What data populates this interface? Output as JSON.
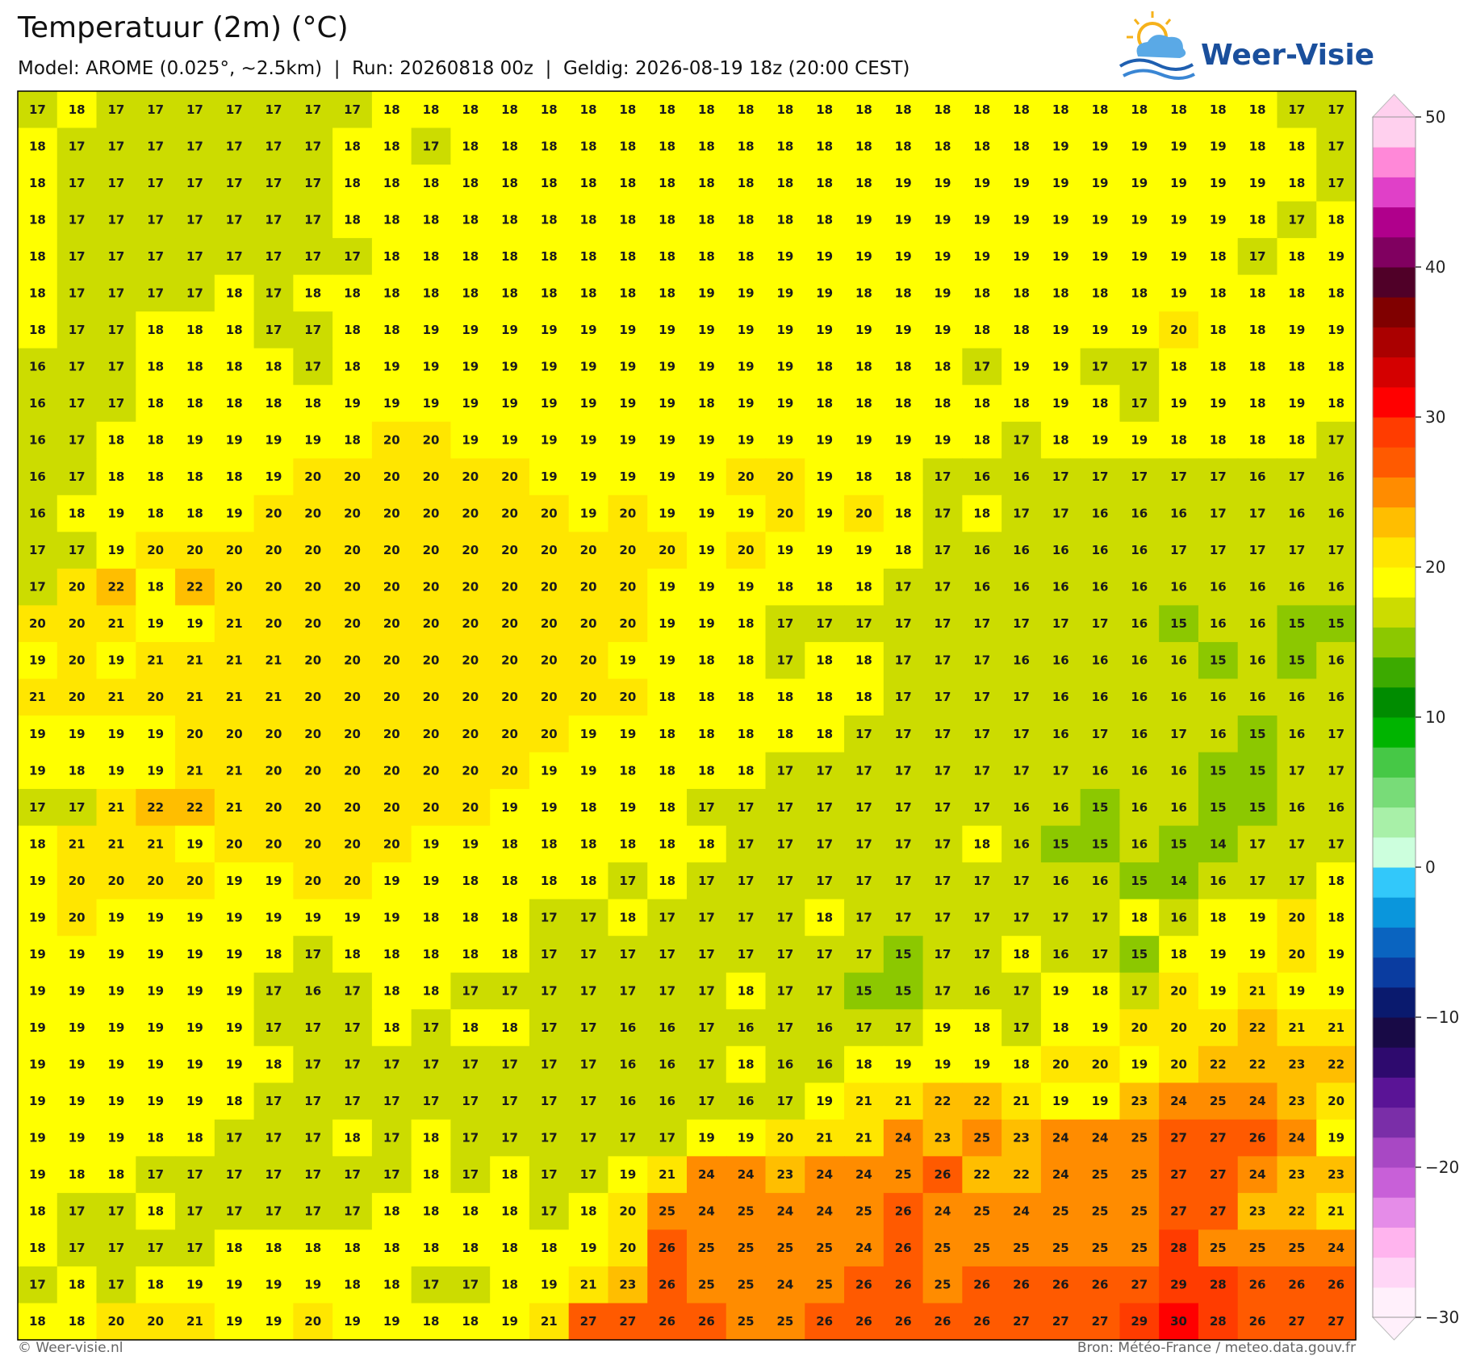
{
  "header": {
    "title": "Temperatuur (2m) (°C)",
    "subtitle": "Model: AROME (0.025°, ~2.5km)  |  Run: 20260818 00z  |  Geldig: 2026-08-19 18z (20:00 CEST)"
  },
  "logo": {
    "text": "Weer-Visie"
  },
  "grid": {
    "rows": [
      [
        17,
        18,
        17,
        17,
        17,
        17,
        17,
        17,
        17,
        18,
        18,
        18,
        18,
        18,
        18,
        18,
        18,
        18,
        18,
        18,
        18,
        18,
        18,
        18,
        18,
        18,
        18,
        18,
        18,
        18,
        18,
        18,
        17,
        17
      ],
      [
        18,
        17,
        17,
        17,
        17,
        17,
        17,
        17,
        18,
        18,
        17,
        18,
        18,
        18,
        18,
        18,
        18,
        18,
        18,
        18,
        18,
        18,
        18,
        18,
        18,
        18,
        19,
        19,
        19,
        19,
        19,
        18,
        18,
        17
      ],
      [
        18,
        17,
        17,
        17,
        17,
        17,
        17,
        17,
        18,
        18,
        18,
        18,
        18,
        18,
        18,
        18,
        18,
        18,
        18,
        18,
        18,
        18,
        19,
        19,
        19,
        19,
        19,
        19,
        19,
        19,
        19,
        19,
        18,
        17
      ],
      [
        18,
        17,
        17,
        17,
        17,
        17,
        17,
        17,
        18,
        18,
        18,
        18,
        18,
        18,
        18,
        18,
        18,
        18,
        18,
        18,
        18,
        19,
        19,
        19,
        19,
        19,
        19,
        19,
        19,
        19,
        19,
        18,
        17,
        18
      ],
      [
        18,
        17,
        17,
        17,
        17,
        17,
        17,
        17,
        17,
        18,
        18,
        18,
        18,
        18,
        18,
        18,
        18,
        18,
        18,
        19,
        19,
        19,
        19,
        19,
        19,
        19,
        19,
        19,
        19,
        19,
        18,
        17,
        18,
        19
      ],
      [
        18,
        17,
        17,
        17,
        17,
        18,
        17,
        18,
        18,
        18,
        18,
        18,
        18,
        18,
        18,
        18,
        18,
        19,
        19,
        19,
        19,
        18,
        18,
        19,
        18,
        18,
        18,
        18,
        18,
        19,
        18,
        18,
        18,
        18
      ],
      [
        18,
        17,
        17,
        18,
        18,
        18,
        17,
        17,
        18,
        18,
        19,
        19,
        19,
        19,
        19,
        19,
        19,
        19,
        19,
        19,
        19,
        19,
        19,
        19,
        18,
        18,
        19,
        19,
        19,
        20,
        18,
        18,
        19,
        19
      ],
      [
        16,
        17,
        17,
        18,
        18,
        18,
        18,
        17,
        18,
        19,
        19,
        19,
        19,
        19,
        19,
        19,
        19,
        19,
        19,
        19,
        18,
        18,
        18,
        18,
        17,
        19,
        19,
        17,
        17,
        18,
        18,
        18,
        18,
        18
      ],
      [
        16,
        17,
        17,
        18,
        18,
        18,
        18,
        18,
        19,
        19,
        19,
        19,
        19,
        19,
        19,
        19,
        19,
        18,
        19,
        19,
        18,
        18,
        18,
        18,
        18,
        18,
        19,
        18,
        17,
        19,
        19,
        18,
        19,
        18
      ],
      [
        16,
        17,
        18,
        18,
        19,
        19,
        19,
        19,
        18,
        20,
        20,
        19,
        19,
        19,
        19,
        19,
        19,
        19,
        19,
        19,
        19,
        19,
        19,
        19,
        18,
        17,
        18,
        19,
        19,
        18,
        18,
        18,
        18,
        17
      ],
      [
        16,
        17,
        18,
        18,
        18,
        18,
        19,
        20,
        20,
        20,
        20,
        20,
        20,
        19,
        19,
        19,
        19,
        19,
        20,
        20,
        19,
        18,
        18,
        17,
        16,
        16,
        17,
        17,
        17,
        17,
        17,
        16,
        17,
        16
      ],
      [
        16,
        18,
        19,
        18,
        18,
        19,
        20,
        20,
        20,
        20,
        20,
        20,
        20,
        20,
        19,
        20,
        19,
        19,
        19,
        20,
        19,
        20,
        18,
        17,
        18,
        17,
        17,
        16,
        16,
        16,
        17,
        17,
        16,
        16
      ],
      [
        17,
        17,
        19,
        20,
        20,
        20,
        20,
        20,
        20,
        20,
        20,
        20,
        20,
        20,
        20,
        20,
        20,
        19,
        20,
        19,
        19,
        19,
        18,
        17,
        16,
        16,
        16,
        16,
        16,
        17,
        17,
        17,
        17,
        17
      ],
      [
        17,
        20,
        22,
        18,
        22,
        20,
        20,
        20,
        20,
        20,
        20,
        20,
        20,
        20,
        20,
        20,
        19,
        19,
        19,
        18,
        18,
        18,
        17,
        17,
        16,
        16,
        16,
        16,
        16,
        16,
        16,
        16,
        16,
        16
      ],
      [
        20,
        20,
        21,
        19,
        19,
        21,
        20,
        20,
        20,
        20,
        20,
        20,
        20,
        20,
        20,
        20,
        19,
        19,
        18,
        17,
        17,
        17,
        17,
        17,
        17,
        17,
        17,
        17,
        16,
        15,
        16,
        16,
        15,
        15
      ],
      [
        19,
        20,
        19,
        21,
        21,
        21,
        21,
        20,
        20,
        20,
        20,
        20,
        20,
        20,
        20,
        19,
        19,
        18,
        18,
        17,
        18,
        18,
        17,
        17,
        17,
        16,
        16,
        16,
        16,
        16,
        15,
        16,
        15,
        16
      ],
      [
        21,
        20,
        21,
        20,
        21,
        21,
        21,
        20,
        20,
        20,
        20,
        20,
        20,
        20,
        20,
        20,
        18,
        18,
        18,
        18,
        18,
        18,
        17,
        17,
        17,
        17,
        16,
        16,
        16,
        16,
        16,
        16,
        16,
        16
      ],
      [
        19,
        19,
        19,
        19,
        20,
        20,
        20,
        20,
        20,
        20,
        20,
        20,
        20,
        20,
        19,
        19,
        18,
        18,
        18,
        18,
        18,
        17,
        17,
        17,
        17,
        17,
        16,
        17,
        16,
        17,
        16,
        15,
        16,
        17
      ],
      [
        19,
        18,
        19,
        19,
        21,
        21,
        20,
        20,
        20,
        20,
        20,
        20,
        20,
        19,
        19,
        18,
        18,
        18,
        18,
        17,
        17,
        17,
        17,
        17,
        17,
        17,
        17,
        16,
        16,
        16,
        15,
        15,
        17,
        17
      ],
      [
        17,
        17,
        21,
        22,
        22,
        21,
        20,
        20,
        20,
        20,
        20,
        20,
        19,
        19,
        18,
        19,
        18,
        17,
        17,
        17,
        17,
        17,
        17,
        17,
        17,
        16,
        16,
        15,
        16,
        16,
        15,
        15,
        16,
        16
      ],
      [
        18,
        21,
        21,
        21,
        19,
        20,
        20,
        20,
        20,
        20,
        19,
        19,
        18,
        18,
        18,
        18,
        18,
        18,
        17,
        17,
        17,
        17,
        17,
        17,
        18,
        16,
        15,
        15,
        16,
        15,
        14,
        17,
        17,
        17
      ],
      [
        19,
        20,
        20,
        20,
        20,
        19,
        19,
        20,
        20,
        19,
        19,
        18,
        18,
        18,
        18,
        17,
        18,
        17,
        17,
        17,
        17,
        17,
        17,
        17,
        17,
        17,
        16,
        16,
        15,
        14,
        16,
        17,
        17,
        18
      ],
      [
        19,
        20,
        19,
        19,
        19,
        19,
        19,
        19,
        19,
        19,
        18,
        18,
        18,
        17,
        17,
        18,
        17,
        17,
        17,
        17,
        18,
        17,
        17,
        17,
        17,
        17,
        17,
        17,
        18,
        16,
        18,
        19,
        20,
        18
      ],
      [
        19,
        19,
        19,
        19,
        19,
        19,
        18,
        17,
        18,
        18,
        18,
        18,
        18,
        17,
        17,
        17,
        17,
        17,
        17,
        17,
        17,
        17,
        15,
        17,
        17,
        18,
        16,
        17,
        15,
        18,
        19,
        19,
        20,
        19
      ],
      [
        19,
        19,
        19,
        19,
        19,
        19,
        17,
        16,
        17,
        18,
        18,
        17,
        17,
        17,
        17,
        17,
        17,
        17,
        18,
        17,
        17,
        15,
        15,
        17,
        16,
        17,
        19,
        18,
        17,
        20,
        19,
        21,
        19,
        19
      ],
      [
        19,
        19,
        19,
        19,
        19,
        19,
        17,
        17,
        17,
        18,
        17,
        18,
        18,
        17,
        17,
        16,
        16,
        17,
        16,
        17,
        16,
        17,
        17,
        19,
        18,
        17,
        18,
        19,
        20,
        20,
        20,
        22,
        21,
        21
      ],
      [
        19,
        19,
        19,
        19,
        19,
        19,
        18,
        17,
        17,
        17,
        17,
        17,
        17,
        17,
        17,
        16,
        16,
        17,
        18,
        16,
        16,
        18,
        19,
        19,
        19,
        18,
        20,
        20,
        19,
        20,
        22,
        22,
        23,
        22
      ],
      [
        19,
        19,
        19,
        19,
        19,
        18,
        17,
        17,
        17,
        17,
        17,
        17,
        17,
        17,
        17,
        16,
        16,
        17,
        16,
        17,
        19,
        21,
        21,
        22,
        22,
        21,
        19,
        19,
        23,
        24,
        25,
        24,
        23,
        20
      ],
      [
        19,
        19,
        19,
        18,
        18,
        17,
        17,
        17,
        18,
        17,
        18,
        17,
        17,
        17,
        17,
        17,
        17,
        19,
        19,
        20,
        21,
        21,
        24,
        23,
        25,
        23,
        24,
        24,
        25,
        27,
        27,
        26,
        24,
        19
      ],
      [
        19,
        18,
        18,
        17,
        17,
        17,
        17,
        17,
        17,
        17,
        18,
        17,
        18,
        17,
        17,
        19,
        21,
        24,
        24,
        23,
        24,
        24,
        25,
        26,
        22,
        22,
        24,
        25,
        25,
        27,
        27,
        24,
        23,
        23
      ],
      [
        18,
        17,
        17,
        18,
        17,
        17,
        17,
        17,
        17,
        18,
        18,
        18,
        18,
        17,
        18,
        20,
        25,
        24,
        25,
        24,
        24,
        25,
        26,
        24,
        25,
        24,
        25,
        25,
        25,
        27,
        27,
        23,
        22,
        21
      ],
      [
        18,
        17,
        17,
        17,
        17,
        18,
        18,
        18,
        18,
        18,
        18,
        18,
        18,
        18,
        19,
        20,
        26,
        25,
        25,
        25,
        25,
        24,
        26,
        25,
        25,
        25,
        25,
        25,
        25,
        28,
        25,
        25,
        25,
        24
      ],
      [
        17,
        18,
        17,
        18,
        19,
        19,
        19,
        19,
        18,
        18,
        17,
        17,
        18,
        19,
        21,
        23,
        26,
        25,
        25,
        24,
        25,
        26,
        26,
        25,
        26,
        26,
        26,
        26,
        27,
        29,
        28,
        26,
        26,
        26
      ],
      [
        18,
        18,
        20,
        20,
        21,
        19,
        19,
        20,
        19,
        19,
        18,
        18,
        19,
        21,
        27,
        27,
        26,
        26,
        25,
        25,
        26,
        26,
        26,
        26,
        26,
        27,
        27,
        27,
        29,
        30,
        28,
        26,
        27,
        27
      ]
    ]
  },
  "colorbar": {
    "lim": [
      -30,
      50
    ],
    "ticks": [
      {
        "value": -30,
        "label": "−30"
      },
      {
        "value": -20,
        "label": "−20"
      },
      {
        "value": -10,
        "label": "−10"
      },
      0,
      10,
      20,
      30,
      40,
      50
    ],
    "colors": [
      "#fff0fb",
      "#ffd6f6",
      "#ffb4ee",
      "#e58ce8",
      "#c860d8",
      "#a848c4",
      "#7a2ea8",
      "#5a1496",
      "#2e0a6e",
      "#180a46",
      "#0a1a6e",
      "#0a3ca0",
      "#0a64c0",
      "#0a96dc",
      "#32c8fa",
      "#ccffdd",
      "#a8f0a8",
      "#78dc78",
      "#46c846",
      "#00b400",
      "#008c00",
      "#3caa00",
      "#8cc800",
      "#ccdc00",
      "#ffff00",
      "#ffe600",
      "#ffbe00",
      "#ff8c00",
      "#ff5a00",
      "#ff3c00",
      "#ff0000",
      "#d40000",
      "#aa0000",
      "#800000",
      "#500028",
      "#800060",
      "#b0008c",
      "#e040c8",
      "#ff88d8",
      "#ffd0ee"
    ]
  },
  "footer": {
    "left": "© Weer-visie.nl",
    "right": "Bron: Météo-France / meteo.data.gouv.fr"
  }
}
